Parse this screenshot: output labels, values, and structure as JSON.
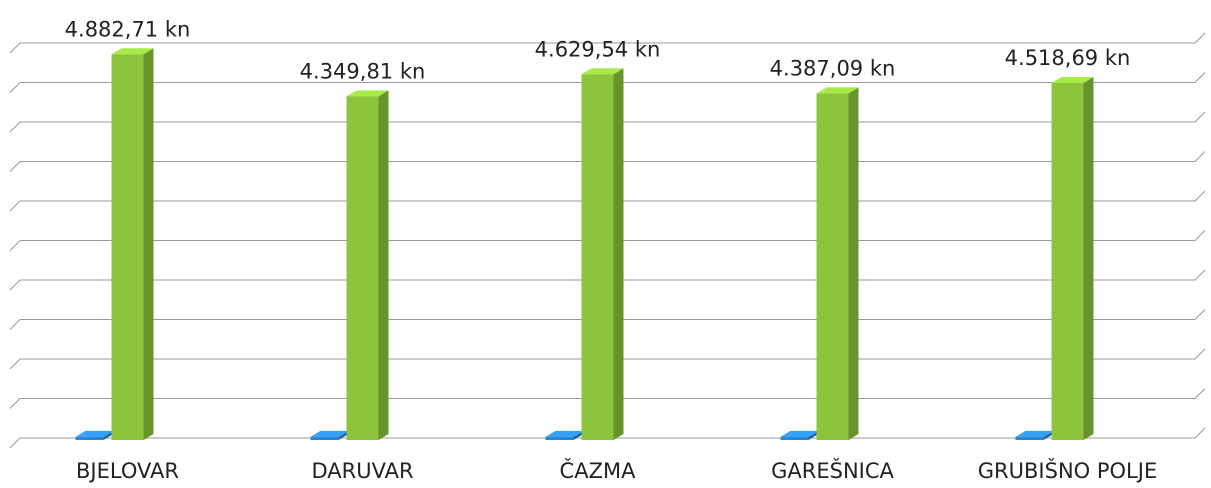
{
  "chart_data": {
    "type": "bar3d",
    "categories": [
      "BJELOVAR",
      "DARUVAR",
      "ČAZMA",
      "GAREŠNICA",
      "GRUBIŠNO POLJE"
    ],
    "series": [
      {
        "color": "#2b86d3",
        "values": [
          40,
          40,
          40,
          40,
          40
        ]
      },
      {
        "color": "#8cc43c",
        "values": [
          4882.71,
          4349.81,
          4629.54,
          4387.09,
          4518.69
        ],
        "value_labels": [
          "4.882,71 kn",
          "4.349,81 kn",
          "4.629,54 kn",
          "4.387,09 kn",
          "4.518,69 kn"
        ]
      }
    ],
    "ylim": [
      0,
      5000
    ],
    "yticks": [
      0,
      500,
      1000,
      1500,
      2000,
      2500,
      3000,
      3500,
      4000,
      4500,
      5000
    ],
    "grid": true
  }
}
